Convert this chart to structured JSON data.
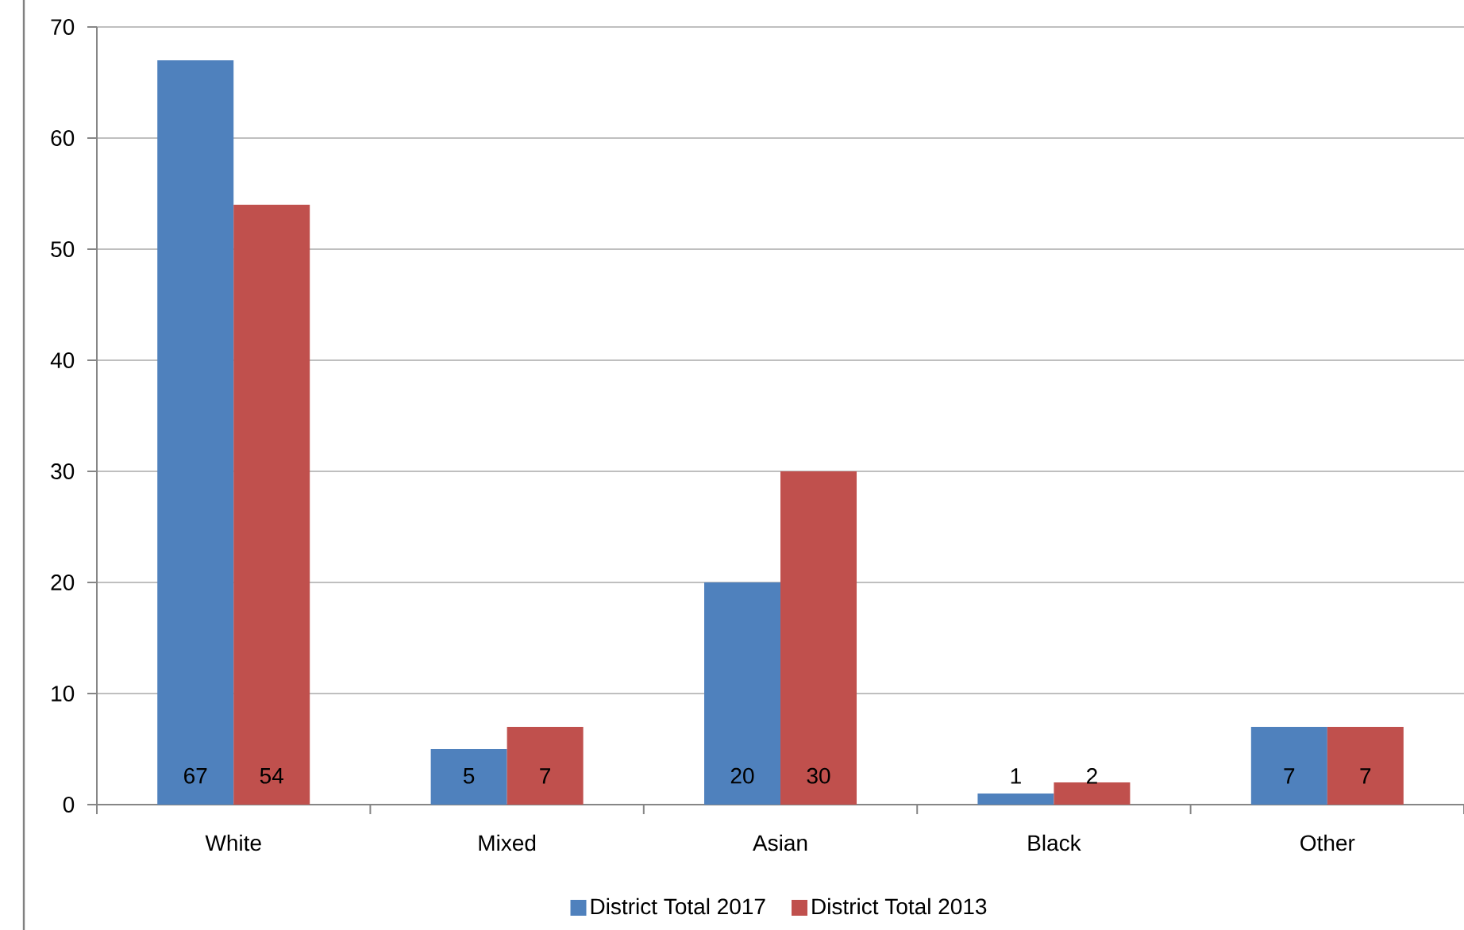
{
  "chart_data": {
    "type": "bar",
    "categories": [
      "White",
      "Mixed",
      "Asian",
      "Black",
      "Other"
    ],
    "series": [
      {
        "name": "District Total 2017",
        "color": "#4f81bd",
        "values": [
          67,
          5,
          20,
          1,
          7
        ]
      },
      {
        "name": "District Total 2013",
        "color": "#c0504d",
        "values": [
          54,
          7,
          30,
          2,
          7
        ]
      }
    ],
    "ylim": [
      0,
      70
    ],
    "yticks": [
      0,
      10,
      20,
      30,
      40,
      50,
      60,
      70
    ],
    "grid": "y",
    "legend": "bottom",
    "data_labels": true
  }
}
